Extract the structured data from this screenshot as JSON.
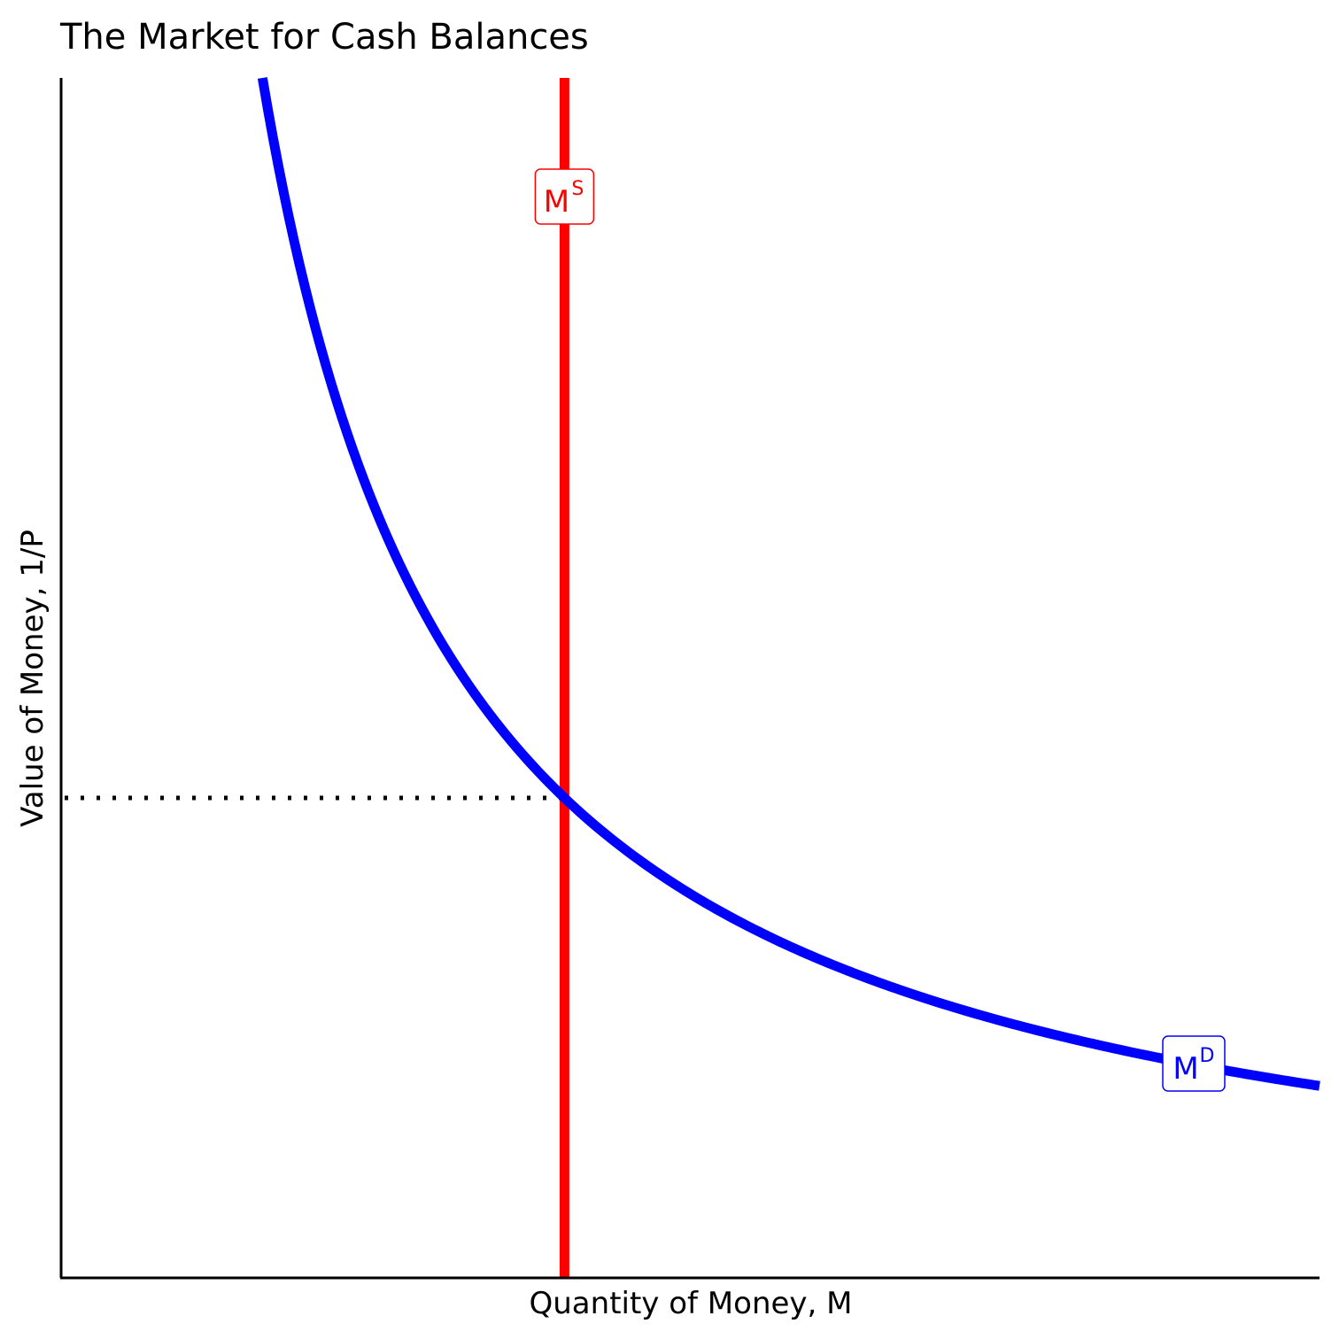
{
  "chart_data": {
    "type": "line",
    "title": "The Market for Cash Balances",
    "xlabel": "Quantity of Money, M",
    "ylabel": "Value of Money, 1/P",
    "xlim": [
      0,
      10
    ],
    "ylim": [
      0,
      10
    ],
    "grid": false,
    "ticks": false,
    "series": [
      {
        "name": "M",
        "name_superscript": "D",
        "kind": "demand",
        "color": "#0000ff",
        "equation": "y = k / x",
        "k": 16,
        "x_range": [
          1.6,
          10
        ]
      },
      {
        "name": "M",
        "name_superscript": "S",
        "kind": "supply",
        "color": "#ff0000",
        "x": 4
      }
    ],
    "equilibrium": {
      "x": 4,
      "y": 4,
      "guide": "dotted-horizontal"
    }
  }
}
